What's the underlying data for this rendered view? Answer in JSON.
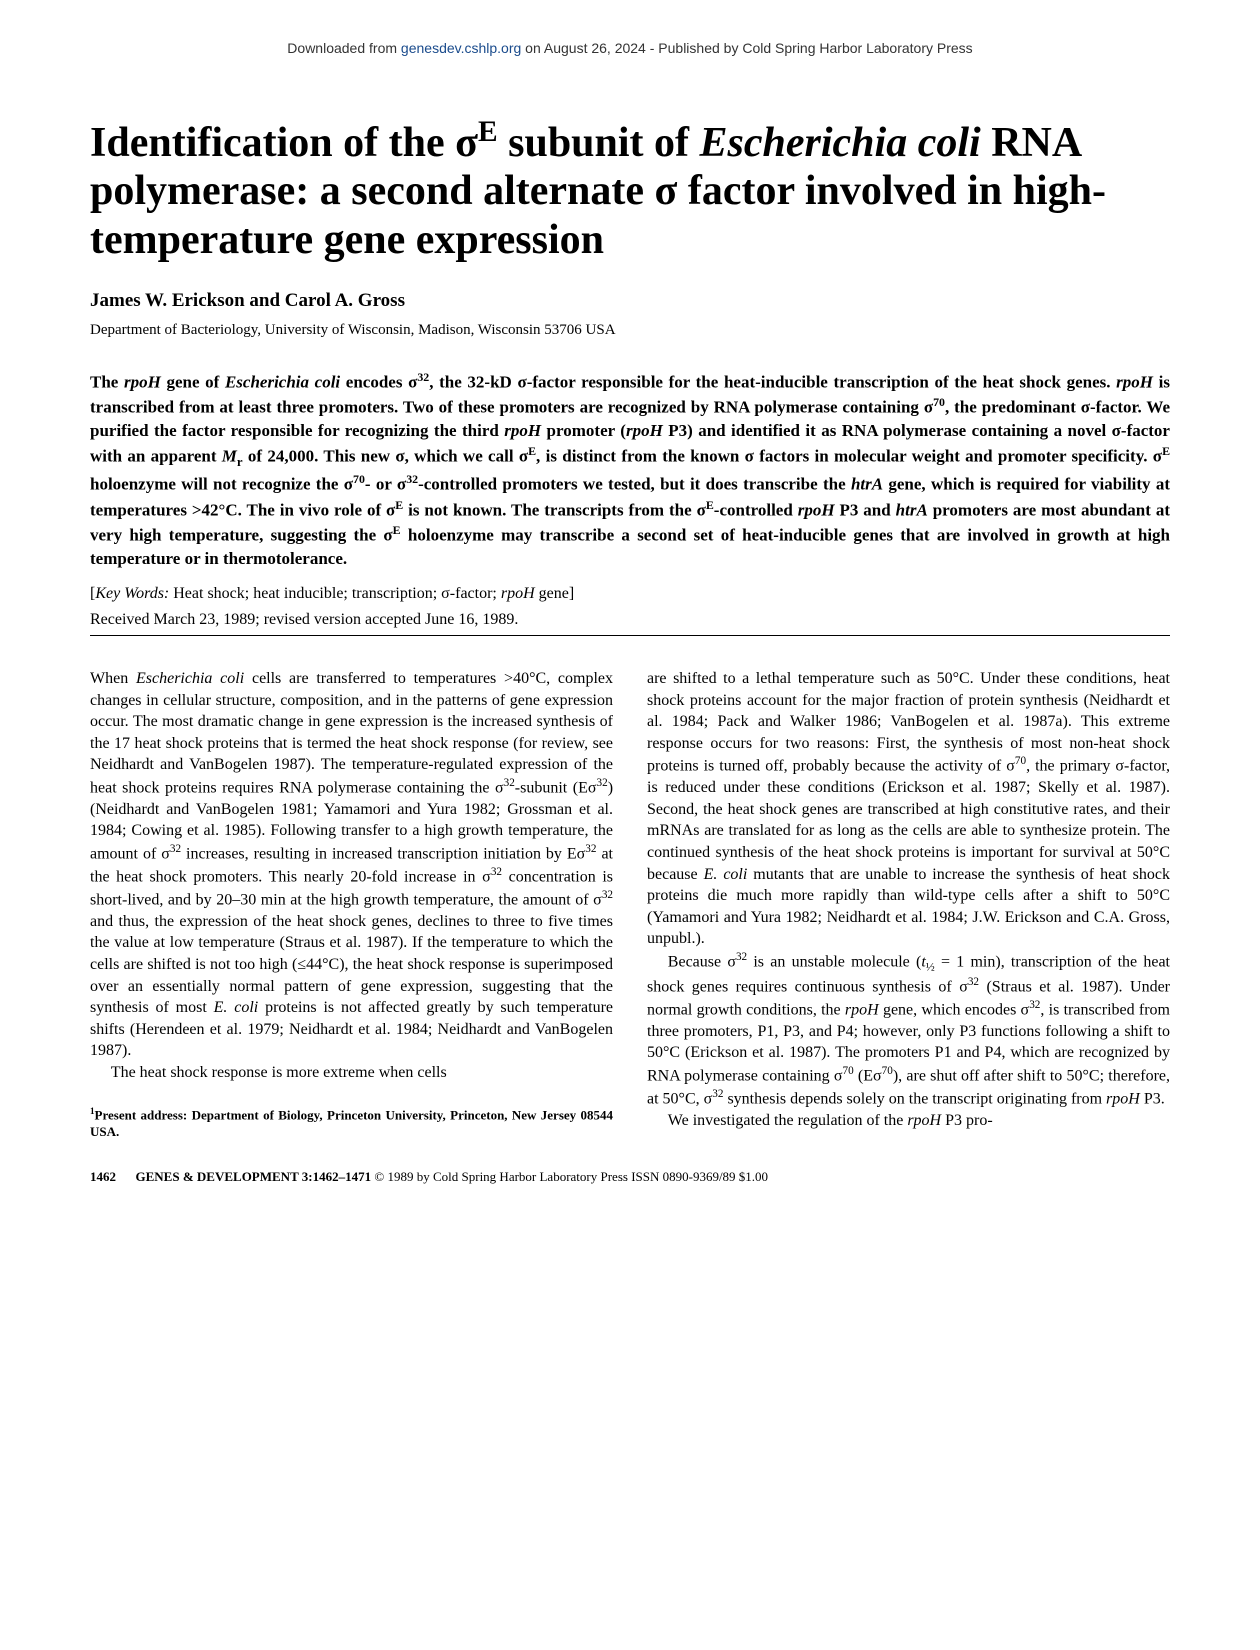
{
  "banner": {
    "prefix": "Downloaded from ",
    "link_text": "genesdev.cshlp.org",
    "suffix": " on August 26, 2024 - Published by Cold Spring Harbor Laboratory Press"
  },
  "title_html": "Identification of the σ<sup>E</sup> subunit of <em>Escherichia coli</em> RNA polymerase: a second alternate σ factor involved in high-temperature gene expression",
  "authors": "James W. Erickson and Carol A. Gross",
  "affiliation": "Department of Bacteriology, University of Wisconsin, Madison, Wisconsin 53706 USA",
  "abstract_html": "The <em>rpoH</em> gene of <em>Escherichia coli</em> encodes σ<sup>32</sup>, the 32-kD σ-factor responsible for the heat-inducible transcription of the heat shock genes. <em>rpoH</em> is transcribed from at least three promoters. Two of these promoters are recognized by RNA polymerase containing σ<sup>70</sup>, the predominant σ-factor. We purified the factor responsible for recognizing the third <em>rpoH</em> promoter (<em>rpoH</em> P3) and identified it as RNA polymerase containing a novel σ-factor with an apparent <em>M</em><sub>r</sub> of 24,000. This new σ, which we call σ<sup>E</sup>, is distinct from the known σ factors in molecular weight and promoter specificity. σ<sup>E</sup> holoenzyme will not recognize the σ<sup>70</sup>- or σ<sup>32</sup>-controlled promoters we tested, but it does transcribe the <em>htrA</em> gene, which is required for viability at temperatures &gt;42°C. The in vivo role of σ<sup>E</sup> is not known. The transcripts from the σ<sup>E</sup>-controlled <em>rpoH</em> P3 and <em>htrA</em> promoters are most abundant at very high temperature, suggesting the σ<sup>E</sup> holoenzyme may transcribe a second set of heat-inducible genes that are involved in growth at high temperature or in thermotolerance.",
  "keywords_html": "[<em>Key Words:</em> Heat shock; heat inducible; transcription; σ-factor; <em>rpoH</em> gene]",
  "received": "Received March 23, 1989; revised version accepted June 16, 1989.",
  "body": {
    "left": {
      "p1_html": "When <em>Escherichia coli</em> cells are transferred to temperatures &gt;40°C, complex changes in cellular structure, composition, and in the patterns of gene expression occur. The most dramatic change in gene expression is the increased synthesis of the 17 heat shock proteins that is termed the heat shock response (for review, see Neidhardt and VanBogelen 1987). The temperature-regulated expression of the heat shock proteins requires RNA polymerase containing the σ<sup>32</sup>-subunit (Eσ<sup>32</sup>) (Neidhardt and VanBogelen 1981; Yamamori and Yura 1982; Grossman et al. 1984; Cowing et al. 1985). Following transfer to a high growth temperature, the amount of σ<sup>32</sup> increases, resulting in increased transcription initiation by Eσ<sup>32</sup> at the heat shock promoters. This nearly 20-fold increase in σ<sup>32</sup> concentration is short-lived, and by 20–30 min at the high growth temperature, the amount of σ<sup>32</sup> and thus, the expression of the heat shock genes, declines to three to five times the value at low temperature (Straus et al. 1987). If the temperature to which the cells are shifted is not too high (≤44°C), the heat shock response is superimposed over an essentially normal pattern of gene expression, suggesting that the synthesis of most <em>E. coli</em> proteins is not affected greatly by such temperature shifts (Herendeen et al. 1979; Neidhardt et al. 1984; Neidhardt and VanBogelen 1987).",
      "p2_html": "The heat shock response is more extreme when cells"
    },
    "right": {
      "p1_html": "are shifted to a lethal temperature such as 50°C. Under these conditions, heat shock proteins account for the major fraction of protein synthesis (Neidhardt et al. 1984; Pack and Walker 1986; VanBogelen et al. 1987a). This extreme response occurs for two reasons: First, the synthesis of most non-heat shock proteins is turned off, probably because the activity of σ<sup>70</sup>, the primary σ-factor, is reduced under these conditions (Erickson et al. 1987; Skelly et al. 1987). Second, the heat shock genes are transcribed at high constitutive rates, and their mRNAs are translated for as long as the cells are able to synthesize protein. The continued synthesis of the heat shock proteins is important for survival at 50°C because <em>E. coli</em> mutants that are unable to increase the synthesis of heat shock proteins die much more rapidly than wild-type cells after a shift to 50°C (Yamamori and Yura 1982; Neidhardt et al. 1984; J.W. Erickson and C.A. Gross, unpubl.).",
      "p2_html": "Because σ<sup>32</sup> is an unstable molecule (<em>t</em><sub>½</sub> = 1 min), transcription of the heat shock genes requires continuous synthesis of σ<sup>32</sup> (Straus et al. 1987). Under normal growth conditions, the <em>rpoH</em> gene, which encodes σ<sup>32</sup>, is transcribed from three promoters, P1, P3, and P4; however, only P3 functions following a shift to 50°C (Erickson et al. 1987). The promoters P1 and P4, which are recognized by RNA polymerase containing σ<sup>70</sup> (Eσ<sup>70</sup>), are shut off after shift to 50°C; therefore, at 50°C, σ<sup>32</sup> synthesis depends solely on the transcript originating from <em>rpoH</em> P3.",
      "p3_html": "We investigated the regulation of the <em>rpoH</em> P3 pro-"
    }
  },
  "footnote_html": "<sup>1</sup>Present address: Department of Biology, Princeton University, Princeton, New Jersey 08544 USA.",
  "footer": {
    "pagenum": "1462",
    "journal": "GENES & DEVELOPMENT 3:1462–1471 ",
    "rest": "© 1989 by Cold Spring Harbor Laboratory Press ISSN 0890-9369/89 $1.00"
  }
}
